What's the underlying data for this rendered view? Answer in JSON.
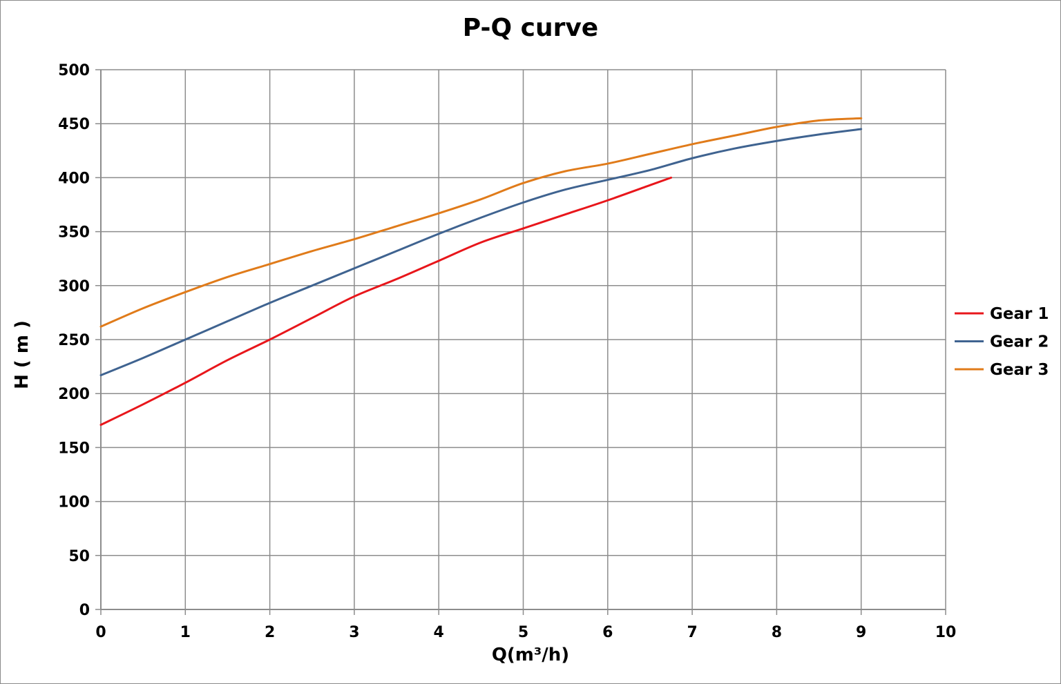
{
  "chart_data": {
    "type": "line",
    "title": "P-Q  curve",
    "xlabel": "Q(m³/h)",
    "ylabel": "H ( m )",
    "xlim": [
      0,
      10
    ],
    "ylim": [
      0,
      500
    ],
    "xticks": [
      0,
      1,
      2,
      3,
      4,
      5,
      6,
      7,
      8,
      9,
      10
    ],
    "yticks": [
      0,
      50,
      100,
      150,
      200,
      250,
      300,
      350,
      400,
      450,
      500
    ],
    "grid": true,
    "legend_position": "right",
    "series": [
      {
        "name": "Gear 1",
        "color": "#e8161b",
        "x": [
          0,
          0.5,
          1,
          1.5,
          2,
          2.5,
          3,
          3.5,
          4,
          4.5,
          5,
          5.5,
          6,
          6.5,
          6.75
        ],
        "y": [
          171,
          190,
          210,
          231,
          250,
          270,
          290,
          306,
          323,
          340,
          353,
          366,
          379,
          393,
          400
        ]
      },
      {
        "name": "Gear 2",
        "color": "#3f6390",
        "x": [
          0,
          0.5,
          1,
          1.5,
          2,
          2.5,
          3,
          3.5,
          4,
          4.5,
          5,
          5.5,
          6,
          6.5,
          7,
          7.5,
          8,
          8.5,
          9
        ],
        "y": [
          217,
          233,
          250,
          267,
          284,
          300,
          316,
          332,
          348,
          363,
          377,
          389,
          398,
          407,
          418,
          427,
          434,
          440,
          445
        ]
      },
      {
        "name": "Gear 3",
        "color": "#e07b1a",
        "x": [
          0,
          0.5,
          1,
          1.5,
          2,
          2.5,
          3,
          3.5,
          4,
          4.5,
          5,
          5.5,
          6,
          6.5,
          7,
          7.5,
          8,
          8.5,
          9
        ],
        "y": [
          262,
          279,
          294,
          308,
          320,
          332,
          343,
          355,
          367,
          380,
          395,
          406,
          413,
          422,
          431,
          439,
          447,
          453,
          455
        ]
      }
    ]
  }
}
